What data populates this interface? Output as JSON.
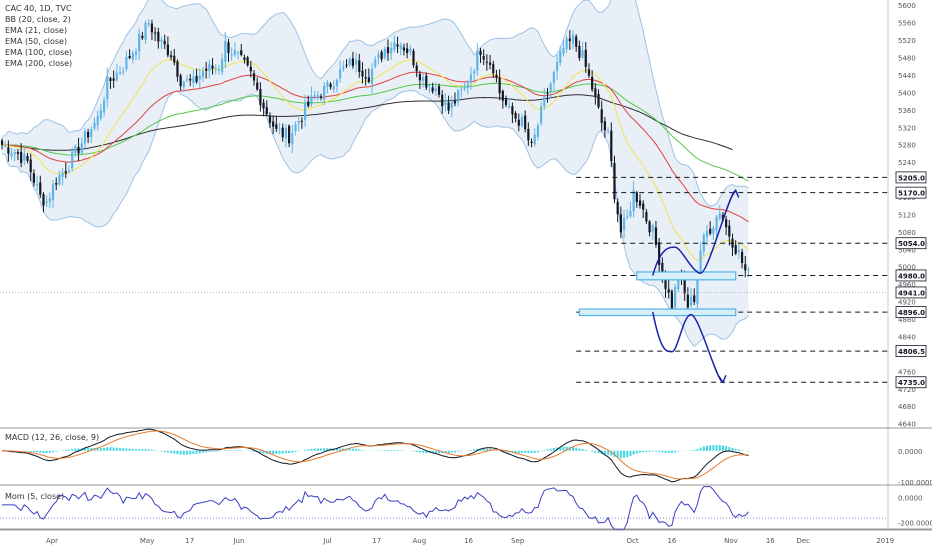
{
  "chart_data": {
    "type": "candlestick",
    "title": "CAC 40, 1D, TVC",
    "legend": [
      "BB (20, close, 2)",
      "EMA (21, close)",
      "EMA (50, close)",
      "EMA (100, close)",
      "EMA (200, close)"
    ],
    "price_axis": {
      "ticks": [
        5600,
        5560,
        5520,
        5480,
        5440,
        5400,
        5360,
        5320,
        5280,
        5240,
        5200,
        5160,
        5120,
        5080,
        5040,
        5000,
        4960,
        4920,
        4880,
        4840,
        4800,
        4760,
        4720,
        4680,
        4640
      ],
      "range": [
        4630,
        5612
      ]
    },
    "time_axis": {
      "labels": [
        "Apr",
        "May",
        "17",
        "Jun",
        "Jul",
        "17",
        "Aug",
        "16",
        "Sep",
        "Oct",
        "16",
        "Nov",
        "16",
        "Dec",
        "2019"
      ]
    },
    "price_labels": [
      {
        "value": 5205.0,
        "text": "5205.0",
        "color": "#131722"
      },
      {
        "value": 5170.0,
        "text": "5170.0",
        "color": "#131722"
      },
      {
        "value": 5054.0,
        "text": "5054.0",
        "color": "#131722"
      },
      {
        "value": 4980.0,
        "text": "4980.0",
        "color": "#131722"
      },
      {
        "value": 4941.0,
        "text": "4941.0",
        "color": "#131722"
      },
      {
        "value": 4896.0,
        "text": "4896.0",
        "color": "#131722"
      },
      {
        "value": 4806.5,
        "text": "4806.5",
        "color": "#131722"
      },
      {
        "value": 4735.0,
        "text": "4735.0",
        "color": "#131722"
      }
    ],
    "last_price": 4941.0,
    "support_resistance": [
      5205.0,
      5170.0,
      5054.0,
      4980.0,
      4896.0,
      4806.5,
      4735.0
    ],
    "zones": [
      {
        "low": 4970,
        "high": 4988,
        "from_day": 199,
        "to_day": 230,
        "color": "#4fb4e6"
      },
      {
        "low": 4888,
        "high": 4903,
        "from_day": 181,
        "to_day": 230,
        "color": "#4fb4e6"
      }
    ],
    "scenario_paths": [
      {
        "name": "up",
        "color": "#1a23a8",
        "points": [
          [
            204,
            4980
          ],
          [
            211,
            5045
          ],
          [
            219,
            4985
          ],
          [
            230,
            5175
          ]
        ]
      },
      {
        "name": "down",
        "color": "#1a23a8",
        "points": [
          [
            204,
            4896
          ],
          [
            210,
            4805
          ],
          [
            216,
            4890
          ],
          [
            226,
            4735
          ]
        ]
      }
    ],
    "colors": {
      "up": "#5eb5e6",
      "down": "#131722",
      "bb_line": "#9cc3e6",
      "bb_fill": "#e9eff7",
      "ema21": "#f2e44e",
      "ema50": "#e2403f",
      "ema100": "#54c845",
      "ema200": "#2d2d2d"
    },
    "macd": {
      "label": "MACD (12, 26, close, 9)",
      "ticks": [
        0.0,
        -100.0
      ],
      "tick_labels": [
        "0.0000",
        "-100.0000"
      ],
      "range": [
        -110,
        70
      ],
      "colors": {
        "macd": "#131722",
        "signal": "#e87b2f",
        "hist": "#3fd6e3"
      }
    },
    "momentum": {
      "label": "Mom (5, close)",
      "ticks": [
        0.0,
        -200.0
      ],
      "tick_labels": [
        "0.0000",
        "-200.0000"
      ],
      "range": [
        -260,
        90
      ],
      "color": "#3a3ec2",
      "baseline": -165
    }
  }
}
